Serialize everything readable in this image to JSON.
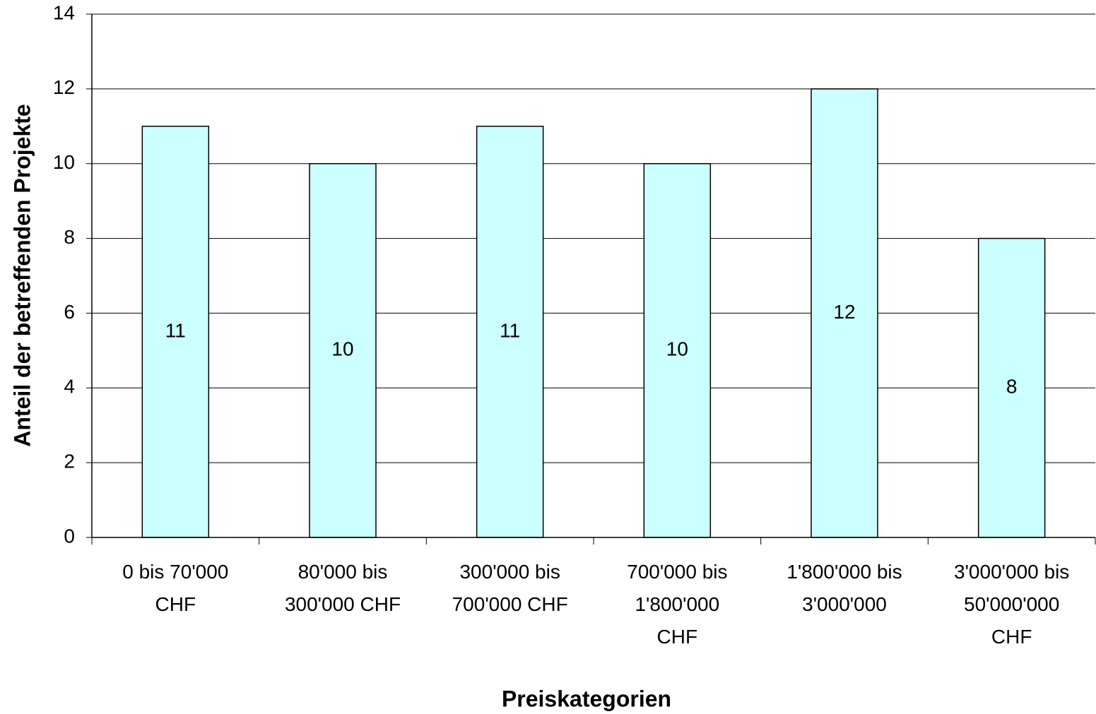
{
  "chart_data": {
    "type": "bar",
    "x_label": "Preiskategorien",
    "y_label": "Anteil der betreffenden Projekte",
    "categories": [
      "0 bis 70'000\nCHF",
      "80'000 bis\n300'000 CHF",
      "300'000 bis\n700'000 CHF",
      "700'000 bis\n1'800'000\nCHF",
      "1'800'000 bis\n3'000'000",
      "3'000'000 bis\n50'000'000\nCHF"
    ],
    "values": [
      11,
      10,
      11,
      10,
      12,
      8
    ],
    "color": "#ccffff",
    "ylim": [
      0,
      14
    ],
    "yticks": [
      0,
      2,
      4,
      6,
      8,
      10,
      12,
      14
    ],
    "grid": true
  }
}
